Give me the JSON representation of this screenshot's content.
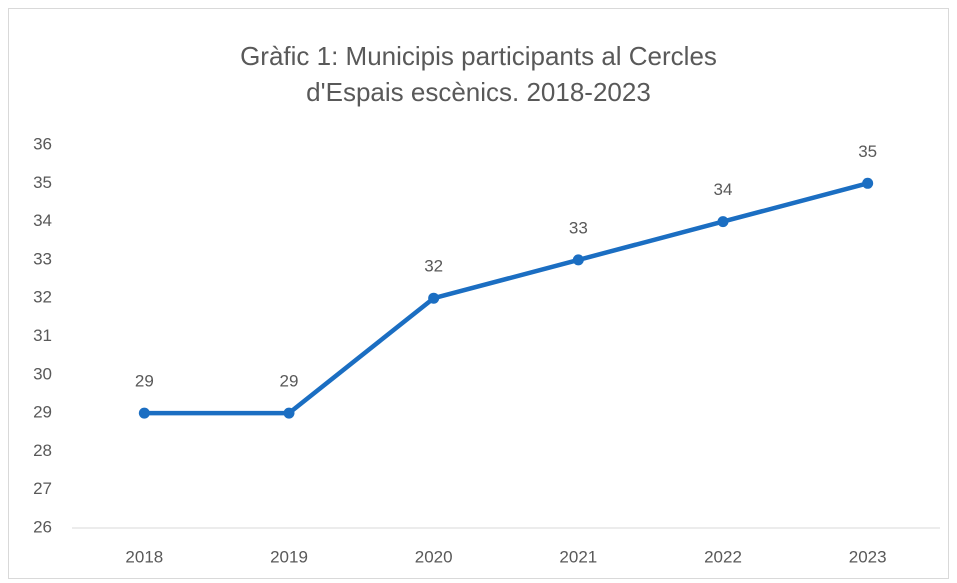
{
  "chart_data": {
    "type": "line",
    "title": "Gràfic 1: Municipis participants al Cercles d'Espais escènics. 2018-2023",
    "categories": [
      "2018",
      "2019",
      "2020",
      "2021",
      "2022",
      "2023"
    ],
    "values": [
      29,
      29,
      32,
      33,
      34,
      35
    ],
    "color": "#1b6ec2",
    "ylim": [
      26,
      36
    ],
    "yticks": [
      26,
      27,
      28,
      29,
      30,
      31,
      32,
      33,
      34,
      35,
      36
    ],
    "grid": false
  }
}
